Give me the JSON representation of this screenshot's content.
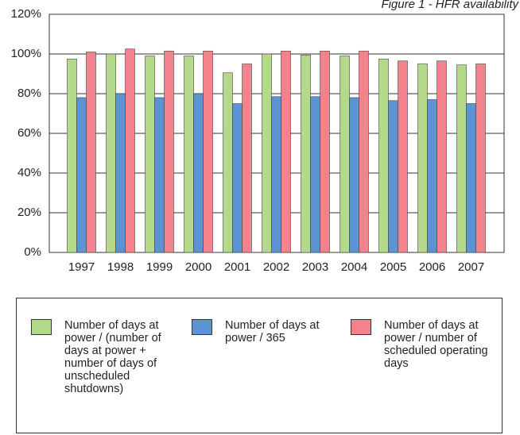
{
  "chart_data": {
    "type": "bar",
    "title": "Figure 1 - HFR availability",
    "categories": [
      "1997",
      "1998",
      "1999",
      "2000",
      "2001",
      "2002",
      "2003",
      "2004",
      "2005",
      "2006",
      "2007"
    ],
    "series": [
      {
        "name": "Number of days at power / (number of days at power + number of days of unscheduled shutdowns)",
        "color": "#b5d98b",
        "values": [
          97.5,
          100,
          99,
          99,
          90.5,
          100,
          99.5,
          99,
          97.5,
          95,
          94.5
        ]
      },
      {
        "name": "Number of days at power / 365",
        "color": "#5b93d3",
        "values": [
          78,
          80,
          78,
          80,
          75,
          78.5,
          78.5,
          78,
          76.5,
          77,
          75
        ]
      },
      {
        "name": "Number of days at power / number of scheduled operating days",
        "color": "#f4828c",
        "values": [
          101,
          102.5,
          101.5,
          101.5,
          95,
          101.5,
          101.5,
          101.5,
          96.5,
          96.5,
          95
        ]
      }
    ],
    "ylim": [
      0,
      120
    ],
    "yticks": [
      {
        "value": 0,
        "label": "0%"
      },
      {
        "value": 20,
        "label": "20%"
      },
      {
        "value": 40,
        "label": "40%"
      },
      {
        "value": 60,
        "label": "60%"
      },
      {
        "value": 80,
        "label": "80%"
      },
      {
        "value": 100,
        "label": "100%"
      },
      {
        "value": 120,
        "label": "120%"
      }
    ],
    "grid": true
  }
}
